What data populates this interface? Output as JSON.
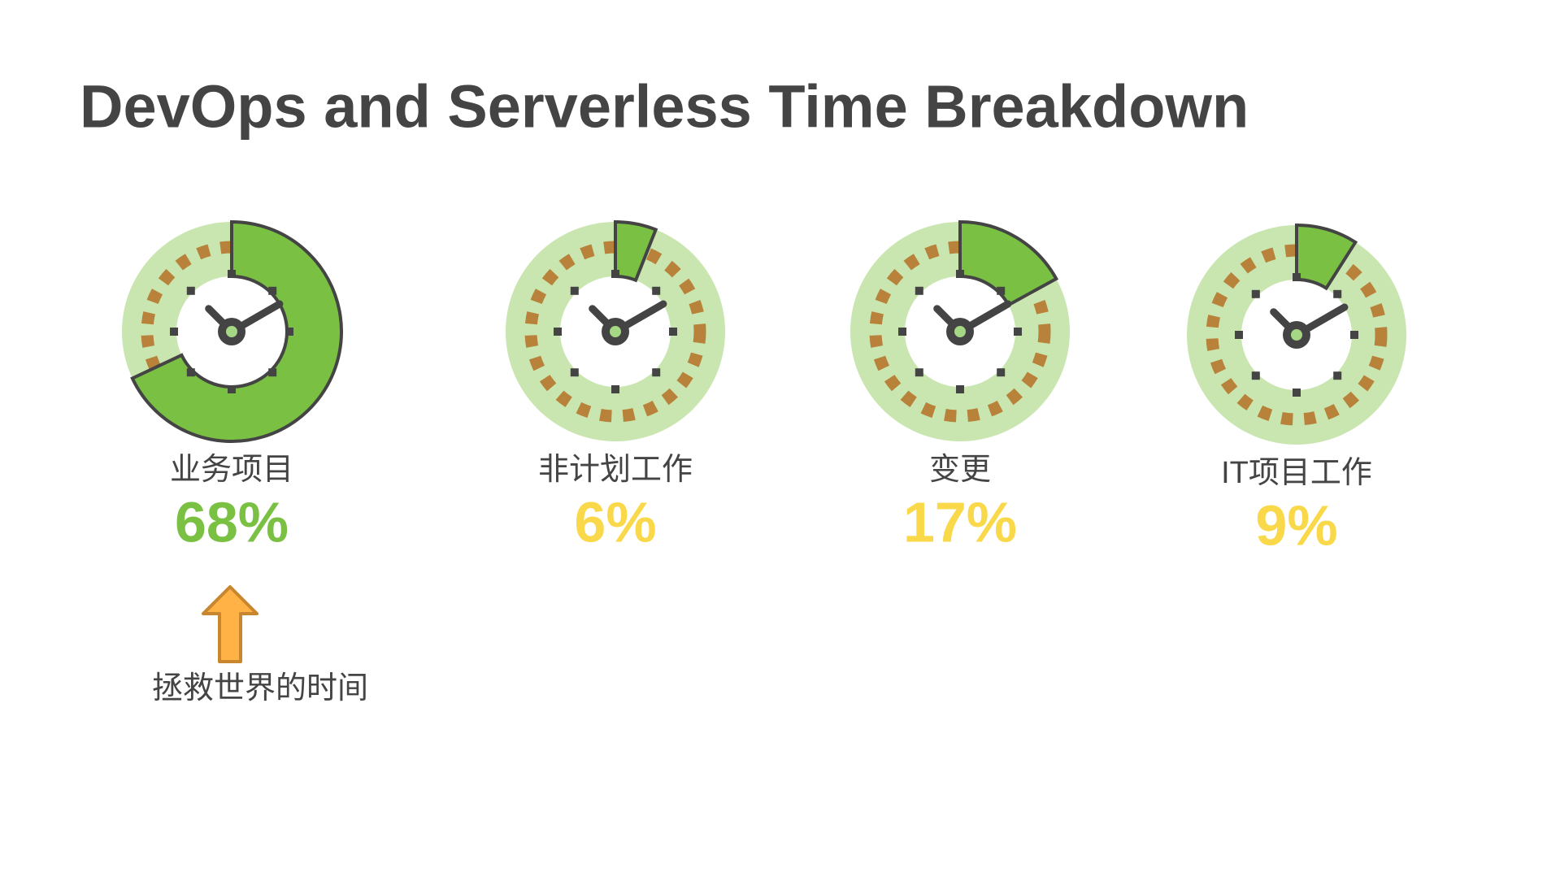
{
  "chart_data": {
    "type": "gauge",
    "title": "DevOps and Serverless Time Breakdown",
    "categories": [
      "业务项目",
      "非计划工作",
      "变更",
      "IT项目工作"
    ],
    "values": [
      68,
      6,
      17,
      9
    ],
    "value_labels": [
      "68%",
      "6%",
      "17%",
      "9%"
    ],
    "color": "#7ac143",
    "label_colors": [
      "#7ac143",
      "#f9d84a",
      "#f9d84a",
      "#f9d84a"
    ],
    "annotation": "拯救世界的时间"
  }
}
